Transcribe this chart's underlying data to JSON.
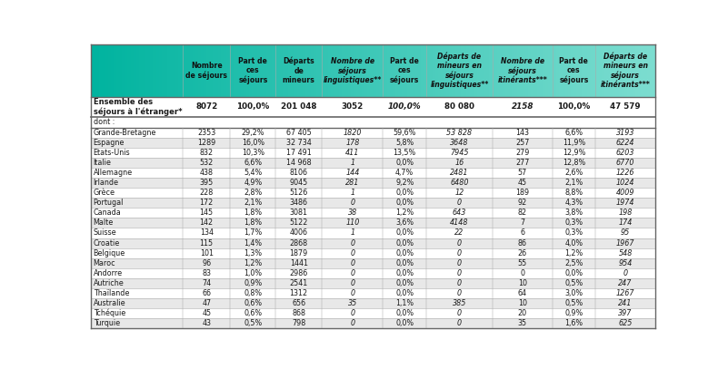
{
  "columns": [
    "",
    "Nombre\nde séjours",
    "Part de\nces\nséjours",
    "Départs\nde\nmineurs",
    "Nombre de\nséjours\nlinguistiques**",
    "Part de\nces\nséjours",
    "Départs de\nmineurs en\nséjours\nlinguistiques**",
    "Nombre de\nséjours\nitinérants***",
    "Part de\nces\nséjours",
    "Départs de\nmineurs en\nséjours\nitinérants***"
  ],
  "col_italic": [
    false,
    false,
    false,
    false,
    true,
    false,
    true,
    true,
    false,
    true
  ],
  "col_bold_header": [
    false,
    true,
    true,
    true,
    true,
    true,
    true,
    true,
    true,
    true
  ],
  "ensemble_label": "Ensemble des\nséjours à l'étranger*",
  "ensemble_values": [
    "8072",
    "100,0%",
    "201 048",
    "3052",
    "100,0%",
    "80 080",
    "2158",
    "100,0%",
    "47 579"
  ],
  "ensemble_italic": [
    false,
    false,
    false,
    false,
    true,
    false,
    true,
    false,
    false,
    true
  ],
  "dont_label": "dont :",
  "rows": [
    [
      "Grande-Bretagne",
      "2353",
      "29,2%",
      "67 405",
      "1820",
      "59,6%",
      "53 828",
      "143",
      "6,6%",
      "3193"
    ],
    [
      "Espagne",
      "1289",
      "16,0%",
      "32 734",
      "178",
      "5,8%",
      "3648",
      "257",
      "11,9%",
      "6224"
    ],
    [
      "Etats-Unis",
      "832",
      "10,3%",
      "17 491",
      "411",
      "13,5%",
      "7945",
      "279",
      "12,9%",
      "6203"
    ],
    [
      "Italie",
      "532",
      "6,6%",
      "14 968",
      "1",
      "0,0%",
      "16",
      "277",
      "12,8%",
      "6770"
    ],
    [
      "Allemagne",
      "438",
      "5,4%",
      "8106",
      "144",
      "4,7%",
      "2481",
      "57",
      "2,6%",
      "1226"
    ],
    [
      "Irlande",
      "395",
      "4,9%",
      "9045",
      "281",
      "9,2%",
      "6480",
      "45",
      "2,1%",
      "1024"
    ],
    [
      "Grèce",
      "228",
      "2,8%",
      "5126",
      "1",
      "0,0%",
      "12",
      "189",
      "8,8%",
      "4009"
    ],
    [
      "Portugal",
      "172",
      "2,1%",
      "3486",
      "0",
      "0,0%",
      "0",
      "92",
      "4,3%",
      "1974"
    ],
    [
      "Canada",
      "145",
      "1,8%",
      "3081",
      "38",
      "1,2%",
      "643",
      "82",
      "3,8%",
      "198"
    ],
    [
      "Malte",
      "142",
      "1,8%",
      "5122",
      "110",
      "3,6%",
      "4148",
      "7",
      "0,3%",
      "174"
    ],
    [
      "Suisse",
      "134",
      "1,7%",
      "4006",
      "1",
      "0,0%",
      "22",
      "6",
      "0,3%",
      "95"
    ],
    [
      "Croatie",
      "115",
      "1,4%",
      "2868",
      "0",
      "0,0%",
      "0",
      "86",
      "4,0%",
      "1967"
    ],
    [
      "Belgique",
      "101",
      "1,3%",
      "1879",
      "0",
      "0,0%",
      "0",
      "26",
      "1,2%",
      "548"
    ],
    [
      "Maroc",
      "96",
      "1,2%",
      "1441",
      "0",
      "0,0%",
      "0",
      "55",
      "2,5%",
      "954"
    ],
    [
      "Andorre",
      "83",
      "1,0%",
      "2986",
      "0",
      "0,0%",
      "0",
      "0",
      "0,0%",
      "0"
    ],
    [
      "Autriche",
      "74",
      "0,9%",
      "2541",
      "0",
      "0,0%",
      "0",
      "10",
      "0,5%",
      "247"
    ],
    [
      "Thaïlande",
      "66",
      "0,8%",
      "1312",
      "0",
      "0,0%",
      "0",
      "64",
      "3,0%",
      "1267"
    ],
    [
      "Australie",
      "47",
      "0,6%",
      "656",
      "35",
      "1,1%",
      "385",
      "10",
      "0,5%",
      "241"
    ],
    [
      "Tchéquie",
      "45",
      "0,6%",
      "868",
      "0",
      "0,0%",
      "0",
      "20",
      "0,9%",
      "397"
    ],
    [
      "Turquie",
      "43",
      "0,5%",
      "798",
      "0",
      "0,0%",
      "0",
      "35",
      "1,6%",
      "625"
    ]
  ],
  "row_italic_cols": [
    false,
    false,
    false,
    false,
    true,
    false,
    true,
    false,
    false,
    true
  ],
  "header_gradient_left": "#00b39f",
  "header_gradient_right": "#7dddd0",
  "row_bg_even": "#ffffff",
  "row_bg_odd": "#e8e8e8",
  "text_color": "#1a1a1a",
  "line_color_strong": "#666666",
  "line_color_light": "#aaaaaa",
  "figsize": [
    8.01,
    4.07
  ],
  "dpi": 100
}
